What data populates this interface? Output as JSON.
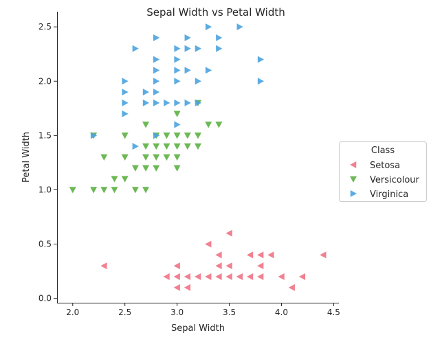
{
  "chart_data": {
    "type": "scatter",
    "title": "Sepal Width vs Petal Width",
    "xlabel": "Sepal Width",
    "ylabel": "Petal Width",
    "xlim": [
      1.85,
      4.55
    ],
    "ylim": [
      -0.04,
      2.64
    ],
    "x_ticks": [
      "2.0",
      "2.5",
      "3.0",
      "3.5",
      "4.0",
      "4.5"
    ],
    "y_ticks": [
      "0.0",
      "0.5",
      "1.0",
      "1.5",
      "2.0",
      "2.5"
    ],
    "grid": false,
    "legend": {
      "title": "Class",
      "placement": "right"
    },
    "series": [
      {
        "name": "Setosa",
        "marker": "triangle-left",
        "color": "#f07284",
        "points": [
          [
            2.3,
            0.3
          ],
          [
            2.9,
            0.2
          ],
          [
            3.0,
            0.1
          ],
          [
            3.0,
            0.2
          ],
          [
            3.0,
            0.3
          ],
          [
            3.1,
            0.1
          ],
          [
            3.1,
            0.2
          ],
          [
            3.2,
            0.2
          ],
          [
            3.3,
            0.2
          ],
          [
            3.3,
            0.5
          ],
          [
            3.4,
            0.2
          ],
          [
            3.4,
            0.3
          ],
          [
            3.4,
            0.4
          ],
          [
            3.5,
            0.2
          ],
          [
            3.5,
            0.3
          ],
          [
            3.5,
            0.6
          ],
          [
            3.6,
            0.2
          ],
          [
            3.7,
            0.2
          ],
          [
            3.7,
            0.4
          ],
          [
            3.8,
            0.2
          ],
          [
            3.8,
            0.3
          ],
          [
            3.8,
            0.4
          ],
          [
            3.9,
            0.4
          ],
          [
            4.0,
            0.2
          ],
          [
            4.1,
            0.1
          ],
          [
            4.2,
            0.2
          ],
          [
            4.4,
            0.4
          ]
        ]
      },
      {
        "name": "Versicolour",
        "marker": "triangle-down",
        "color": "#5cb043",
        "points": [
          [
            2.0,
            1.0
          ],
          [
            2.2,
            1.0
          ],
          [
            2.2,
            1.5
          ],
          [
            2.3,
            1.0
          ],
          [
            2.3,
            1.3
          ],
          [
            2.4,
            1.0
          ],
          [
            2.4,
            1.1
          ],
          [
            2.5,
            1.1
          ],
          [
            2.5,
            1.3
          ],
          [
            2.5,
            1.5
          ],
          [
            2.6,
            1.0
          ],
          [
            2.6,
            1.2
          ],
          [
            2.7,
            1.0
          ],
          [
            2.7,
            1.2
          ],
          [
            2.7,
            1.3
          ],
          [
            2.7,
            1.4
          ],
          [
            2.7,
            1.6
          ],
          [
            2.8,
            1.2
          ],
          [
            2.8,
            1.3
          ],
          [
            2.8,
            1.4
          ],
          [
            2.8,
            1.5
          ],
          [
            2.9,
            1.3
          ],
          [
            2.9,
            1.4
          ],
          [
            2.9,
            1.5
          ],
          [
            3.0,
            1.2
          ],
          [
            3.0,
            1.3
          ],
          [
            3.0,
            1.4
          ],
          [
            3.0,
            1.5
          ],
          [
            3.0,
            1.7
          ],
          [
            3.1,
            1.4
          ],
          [
            3.1,
            1.5
          ],
          [
            3.2,
            1.4
          ],
          [
            3.2,
            1.5
          ],
          [
            3.2,
            1.8
          ],
          [
            3.3,
            1.6
          ],
          [
            3.4,
            1.6
          ]
        ]
      },
      {
        "name": "Virginica",
        "marker": "triangle-right",
        "color": "#4aa3e0",
        "points": [
          [
            2.2,
            1.5
          ],
          [
            2.5,
            1.7
          ],
          [
            2.5,
            1.8
          ],
          [
            2.5,
            1.9
          ],
          [
            2.5,
            2.0
          ],
          [
            2.6,
            1.4
          ],
          [
            2.6,
            2.3
          ],
          [
            2.7,
            1.8
          ],
          [
            2.7,
            1.9
          ],
          [
            2.8,
            1.5
          ],
          [
            2.8,
            1.8
          ],
          [
            2.8,
            1.9
          ],
          [
            2.8,
            2.0
          ],
          [
            2.8,
            2.1
          ],
          [
            2.8,
            2.2
          ],
          [
            2.8,
            2.4
          ],
          [
            2.9,
            1.8
          ],
          [
            3.0,
            1.6
          ],
          [
            3.0,
            1.8
          ],
          [
            3.0,
            2.0
          ],
          [
            3.0,
            2.1
          ],
          [
            3.0,
            2.2
          ],
          [
            3.0,
            2.3
          ],
          [
            3.1,
            1.8
          ],
          [
            3.1,
            2.1
          ],
          [
            3.1,
            2.3
          ],
          [
            3.1,
            2.4
          ],
          [
            3.2,
            1.8
          ],
          [
            3.2,
            2.0
          ],
          [
            3.2,
            2.3
          ],
          [
            3.3,
            2.1
          ],
          [
            3.3,
            2.5
          ],
          [
            3.4,
            2.3
          ],
          [
            3.4,
            2.4
          ],
          [
            3.6,
            2.5
          ],
          [
            3.8,
            2.0
          ],
          [
            3.8,
            2.2
          ]
        ]
      }
    ]
  }
}
